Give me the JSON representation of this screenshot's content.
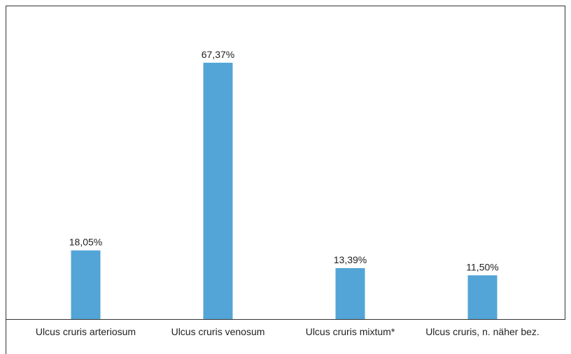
{
  "chart_data": {
    "type": "bar",
    "categories": [
      "Ulcus cruris arteriosum",
      "Ulcus cruris venosum",
      "Ulcus cruris mixtum*",
      "Ulcus cruris, n. näher bez."
    ],
    "values": [
      18.05,
      67.37,
      13.39,
      11.5
    ],
    "value_labels": [
      "18,05%",
      "67,37%",
      "13,39%",
      "11,50%"
    ],
    "color": "#52a5d6"
  }
}
